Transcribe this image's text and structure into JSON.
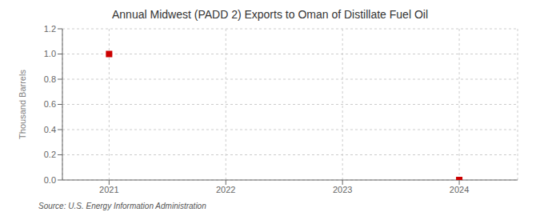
{
  "chart_data": {
    "type": "scatter",
    "title": "Annual Midwest (PADD 2) Exports to Oman of Distillate Fuel Oil",
    "ylabel": "Thousand Barrels",
    "source": "Source: U.S. Energy Information Administration",
    "x": [
      2021,
      2022,
      2023,
      2024
    ],
    "values": [
      1.0,
      null,
      null,
      0.0
    ],
    "color": "#cc0000",
    "marker": "square",
    "xlim": [
      2020.6,
      2024.5
    ],
    "ylim": [
      0.0,
      1.2
    ],
    "xticks": [
      2021,
      2022,
      2023,
      2024
    ],
    "yticks": [
      {
        "value": 0.0,
        "label": "0.0"
      },
      0.2,
      0.4,
      0.6,
      0.8,
      {
        "value": 1.0,
        "label": "1.0"
      },
      1.2
    ],
    "grid": true
  }
}
